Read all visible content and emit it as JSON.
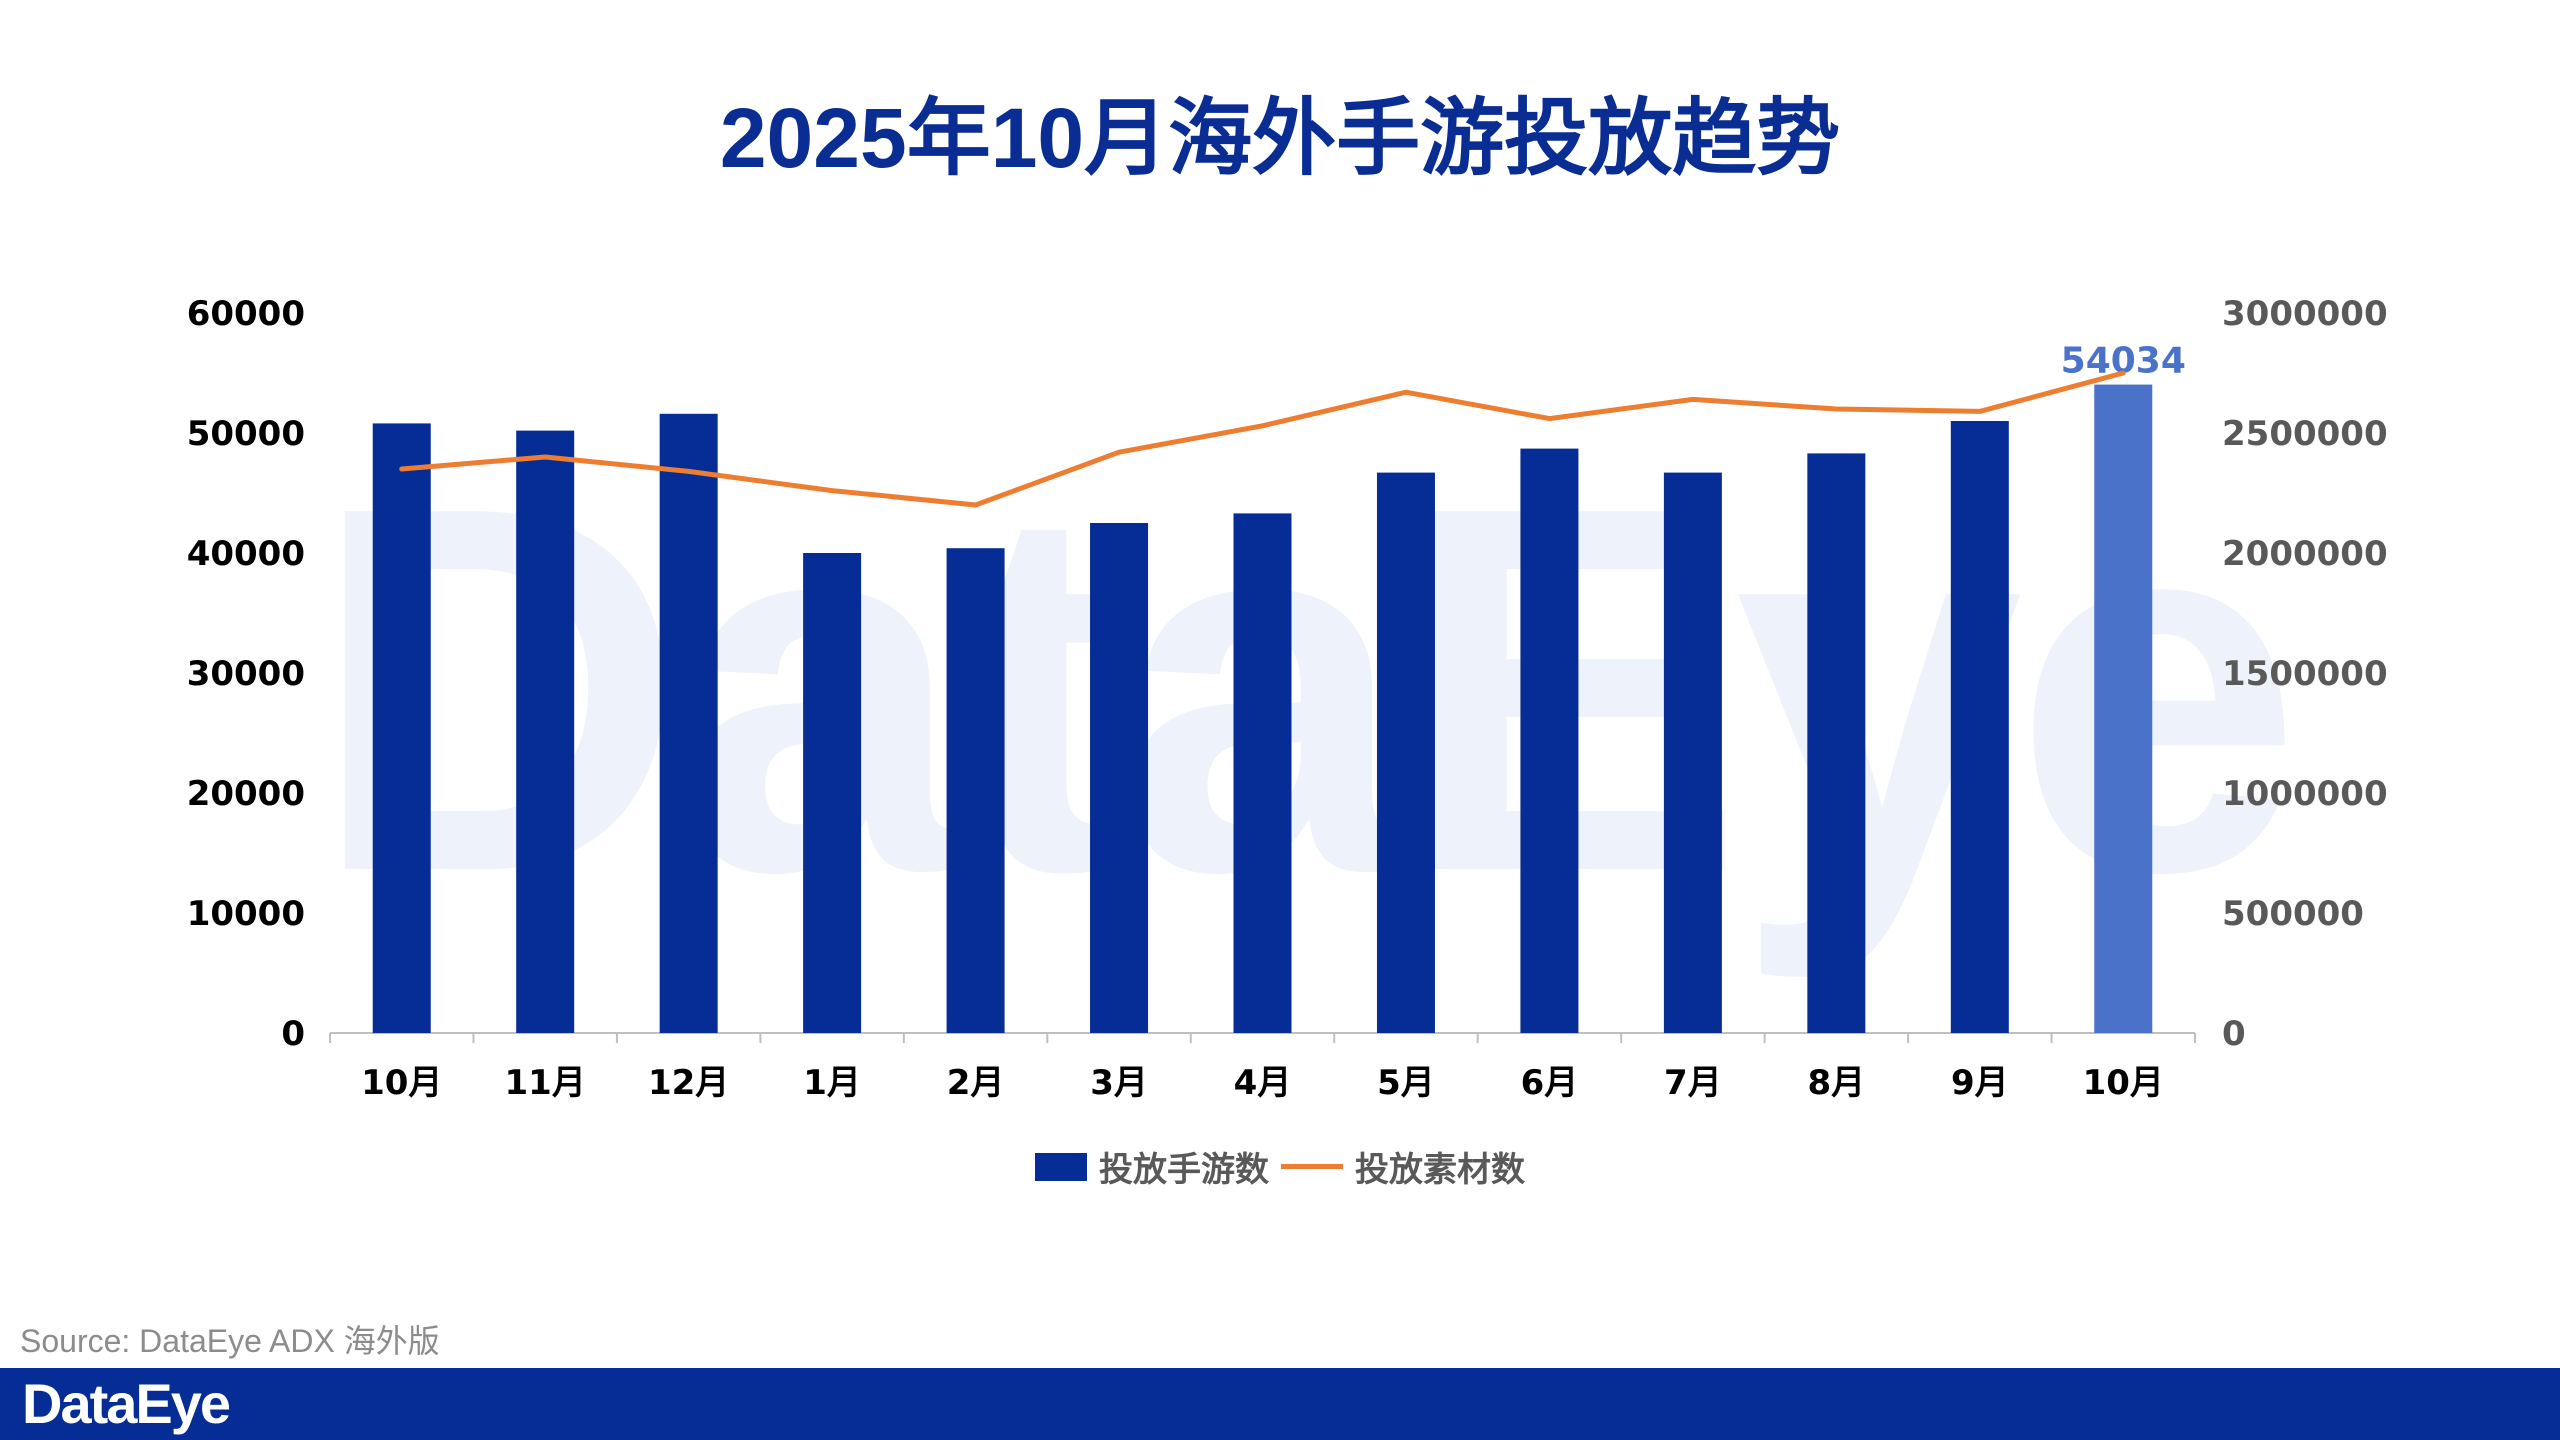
{
  "title": "2025年10月海外手游投放趋势",
  "watermark": "DataEye",
  "source": "Source: DataEye ADX 海外版",
  "footer_logo": "DataEye",
  "colors": {
    "bar": "#062c96",
    "bar_highlight": "#4a72c8",
    "line": "#ed7d31",
    "title": "#0a2d94",
    "axis_text": "#000000",
    "right_axis_text": "#595959"
  },
  "chart_data": {
    "type": "bar",
    "title": "2025年10月海外手游投放趋势",
    "categories": [
      "10月",
      "11月",
      "12月",
      "1月",
      "2月",
      "3月",
      "4月",
      "5月",
      "6月",
      "7月",
      "8月",
      "9月",
      "10月"
    ],
    "series": [
      {
        "name": "投放手游数",
        "type": "bar",
        "axis": "left",
        "values": [
          50800,
          50200,
          51600,
          40000,
          40400,
          42500,
          43300,
          46700,
          48700,
          46700,
          48300,
          51000,
          54034
        ]
      },
      {
        "name": "投放素材数",
        "type": "line",
        "axis": "right",
        "values": [
          2350000,
          2400000,
          2340000,
          2260000,
          2200000,
          2420000,
          2530000,
          2670000,
          2560000,
          2640000,
          2600000,
          2590000,
          2750000
        ]
      }
    ],
    "y_left": {
      "min": 0,
      "max": 60000,
      "ticks": [
        0,
        10000,
        20000,
        30000,
        40000,
        50000,
        60000
      ]
    },
    "y_right": {
      "min": 0,
      "max": 3000000,
      "ticks": [
        0,
        500000,
        1000000,
        1500000,
        2000000,
        2500000,
        3000000
      ]
    },
    "highlight_index": 12,
    "highlight_label": "54034",
    "legend_position": "bottom",
    "grid": false
  }
}
